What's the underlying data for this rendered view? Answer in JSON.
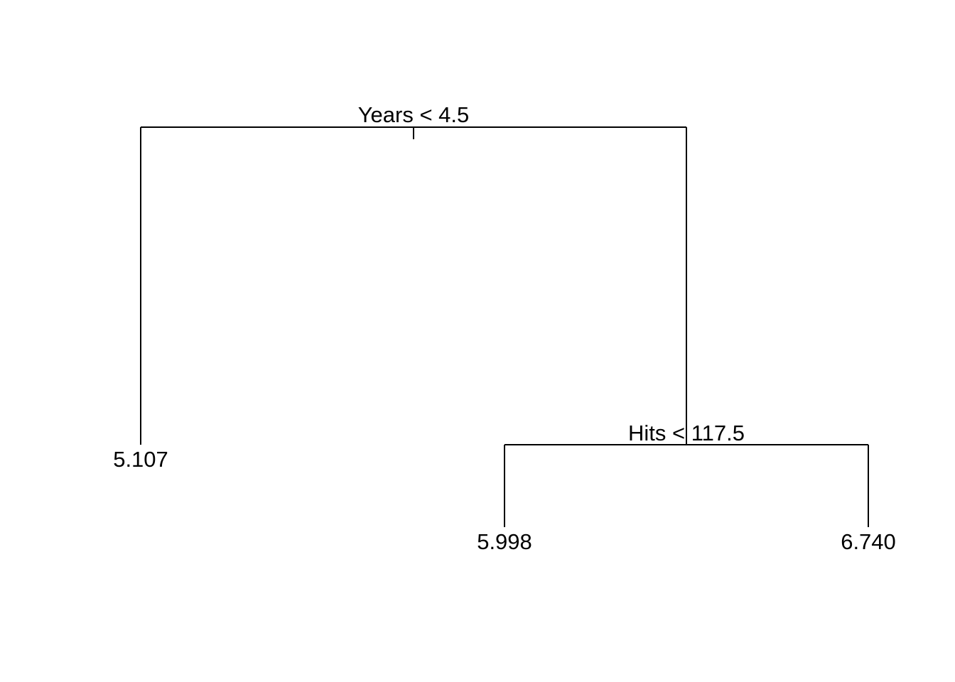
{
  "tree": {
    "root": {
      "split_label": "Years < 4.5",
      "left": {
        "leaf_value": "5.107"
      },
      "right": {
        "split_label": "Hits < 117.5",
        "left": {
          "leaf_value": "5.998"
        },
        "right": {
          "leaf_value": "6.740"
        }
      }
    }
  },
  "colors": {
    "line": "#000000",
    "text": "#000000",
    "background": "#ffffff"
  }
}
